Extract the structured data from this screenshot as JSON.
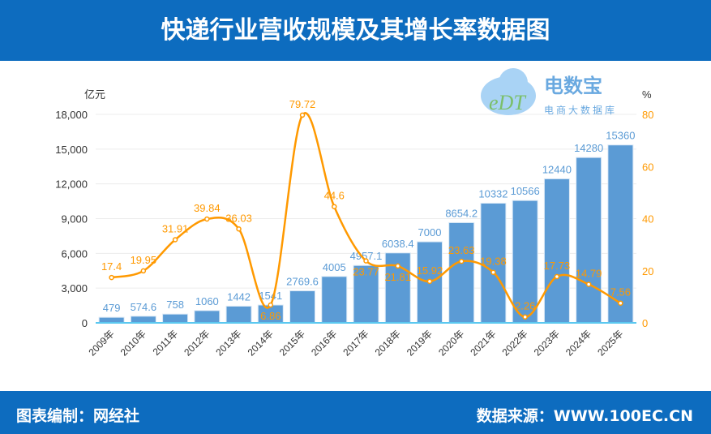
{
  "title": "快递行业营收规模及其增长率数据图",
  "footer": {
    "left": "图表编制：网经社",
    "right": "数据来源：WWW.100EC.CN"
  },
  "logo": {
    "brand": "电数宝",
    "sub": "电商大数据库",
    "mark": "eDT"
  },
  "colors": {
    "bar": "#5b9bd5",
    "line": "#ff9900",
    "header": "#0d6cbf"
  },
  "chart_data": {
    "type": "bar+line",
    "categories": [
      "2009年",
      "2010年",
      "2011年",
      "2012年",
      "2013年",
      "2014年",
      "2015年",
      "2016年",
      "2017年",
      "2018年",
      "2019年",
      "2020年",
      "2021年",
      "2022年",
      "2023年",
      "2024年",
      "2025年"
    ],
    "series": [
      {
        "axis": "left",
        "type": "bar",
        "values": [
          479,
          574.6,
          758,
          1060,
          1442,
          1541,
          2769.6,
          4005,
          4957.1,
          6038.4,
          7000,
          8654.2,
          10332,
          10566,
          12440,
          14280,
          15360
        ]
      },
      {
        "axis": "right",
        "type": "line",
        "values": [
          17.4,
          19.95,
          31.91,
          39.84,
          36.03,
          6.86,
          79.72,
          44.6,
          23.77,
          21.81,
          15.92,
          23.63,
          19.38,
          2.26,
          17.73,
          14.79,
          7.56
        ]
      }
    ],
    "y_left": {
      "unit": "亿元",
      "ticks": [
        "0",
        "3,000",
        "6,000",
        "9,000",
        "12,000",
        "15,000",
        "18,000"
      ],
      "range": [
        0,
        18000
      ]
    },
    "y_right": {
      "unit": "%",
      "ticks": [
        "0",
        "20",
        "40",
        "60",
        "80"
      ],
      "range": [
        0,
        80
      ]
    },
    "grid": true
  }
}
